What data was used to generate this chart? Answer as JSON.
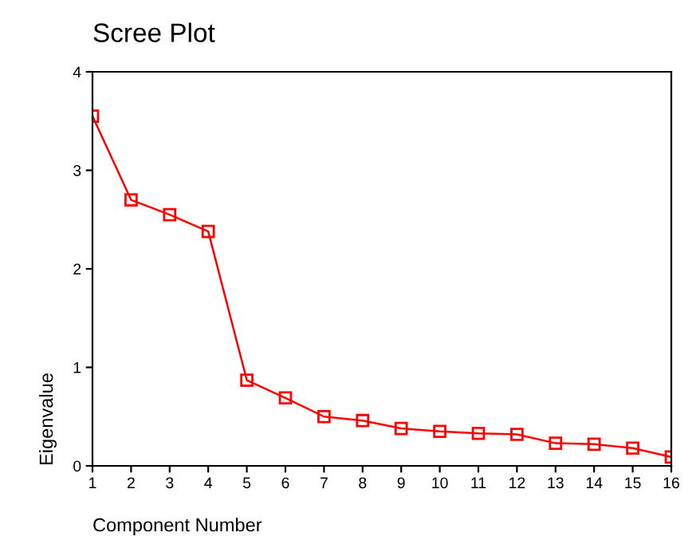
{
  "chart_data": {
    "type": "line",
    "title": "Scree Plot",
    "xlabel": "Component Number",
    "ylabel": "Eigenvalue",
    "x": [
      1,
      2,
      3,
      4,
      5,
      6,
      7,
      8,
      9,
      10,
      11,
      12,
      13,
      14,
      15,
      16
    ],
    "series": [
      {
        "color": "#ff0000",
        "values": [
          3.55,
          2.7,
          2.55,
          2.38,
          0.87,
          0.69,
          0.5,
          0.46,
          0.38,
          0.35,
          0.33,
          0.32,
          0.23,
          0.22,
          0.18,
          0.09
        ]
      }
    ],
    "xlim": [
      1,
      16
    ],
    "xticks": [
      1,
      2,
      3,
      4,
      5,
      6,
      7,
      8,
      9,
      10,
      11,
      12,
      13,
      14,
      15,
      16
    ],
    "ylim": [
      0,
      4
    ],
    "yticks": [
      0,
      1,
      2,
      3,
      4
    ],
    "grid": false,
    "marker": "square",
    "line_style": "solid"
  }
}
